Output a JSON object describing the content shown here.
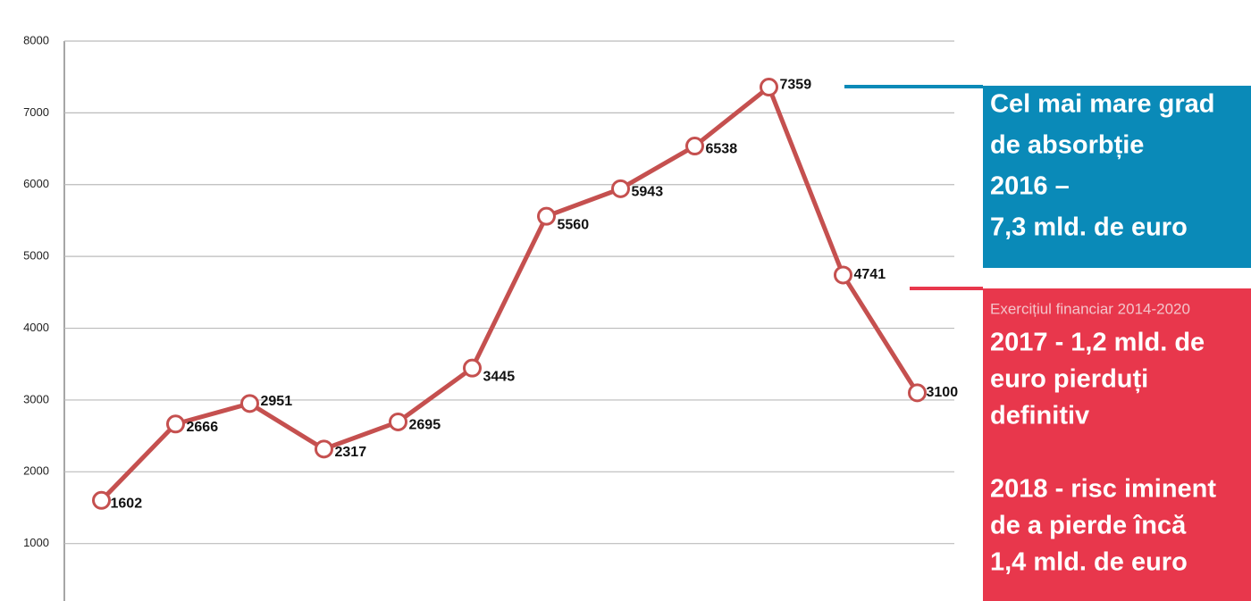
{
  "chart_data": {
    "type": "line",
    "categories": [
      null,
      null,
      null,
      null,
      null,
      null,
      null,
      null,
      null,
      null,
      null,
      null
    ],
    "series": [
      {
        "color": "#c5504f",
        "values": [
          1602,
          2666,
          2951,
          2317,
          2695,
          3445,
          5560,
          5943,
          6538,
          7359,
          4741,
          3100
        ]
      }
    ],
    "ylim": [
      200,
      8000
    ],
    "yticks": [
      1000,
      2000,
      3000,
      4000,
      5000,
      6000,
      7000,
      8000
    ],
    "grid": true,
    "annotations": [
      {
        "color": "#0a8ab8",
        "lines": [
          "Cel mai mare grad",
          "de absorbție",
          "2016 –",
          "7,3 mld. de euro"
        ]
      },
      {
        "color": "#e8374c",
        "lines": [
          "Exercițiul financiar 2014-2020",
          "2017  - 1,2 mld. de",
          "euro pierduți",
          "definitiv",
          "",
          "2018 - risc iminent",
          "de a pierde încă",
          "1,4 mld. de euro"
        ]
      }
    ]
  }
}
